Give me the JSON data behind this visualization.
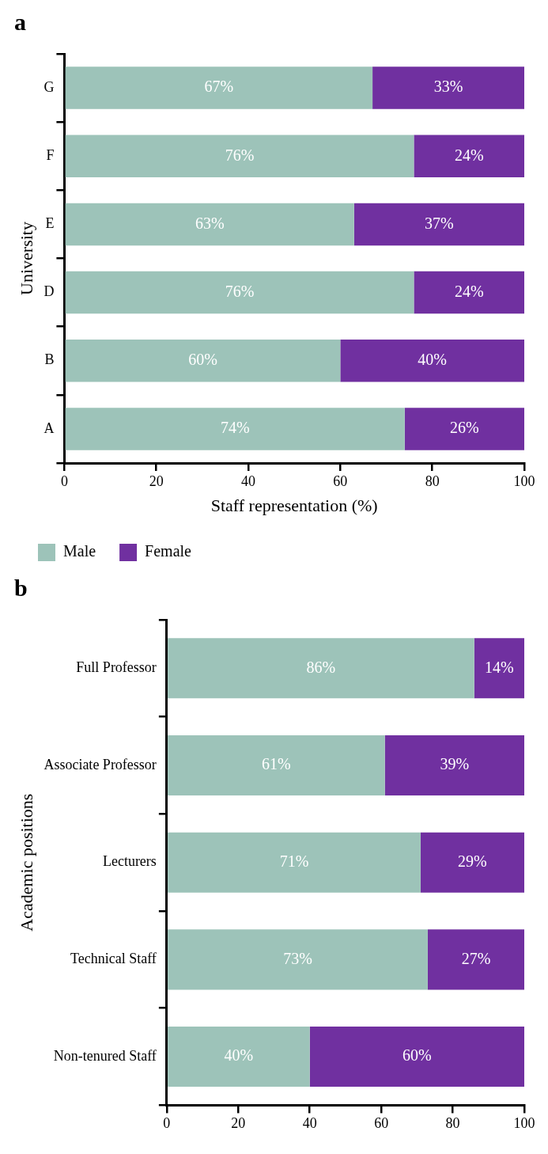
{
  "chart_data": [
    {
      "type": "bar",
      "title": "a",
      "orientation": "horizontal",
      "stacked": true,
      "xlabel": "Staff representation (%)",
      "ylabel": "University",
      "categories": [
        "G",
        "F",
        "E",
        "D",
        "B",
        "A"
      ],
      "xlim": [
        0,
        100
      ],
      "xticks": [
        0,
        20,
        40,
        60,
        80,
        100
      ],
      "grid": false,
      "legend": "bottom",
      "series": [
        {
          "name": "Male",
          "color": "#9dc3b9",
          "values": [
            67,
            76,
            63,
            76,
            60,
            74
          ],
          "value_labels": [
            "67%",
            "76%",
            "63%",
            "76%",
            "60%",
            "74%"
          ]
        },
        {
          "name": "Female",
          "color": "#7030a0",
          "values": [
            33,
            24,
            37,
            24,
            40,
            26
          ],
          "value_labels": [
            "33%",
            "24%",
            "37%",
            "24%",
            "40%",
            "26%"
          ]
        }
      ]
    },
    {
      "type": "bar",
      "title": "b",
      "orientation": "horizontal",
      "stacked": true,
      "ylabel": "Academic positions",
      "categories": [
        "Full Professor",
        "Associate Professor",
        "Lecturers",
        "Technical Staff",
        "Non-tenured Staff"
      ],
      "xlim": [
        0,
        100
      ],
      "xticks": [
        0,
        20,
        40,
        60,
        80,
        100
      ],
      "grid": false,
      "legend": false,
      "series": [
        {
          "color": "#9dc3b9",
          "values": [
            86,
            61,
            71,
            73,
            40
          ],
          "value_labels": [
            "86%",
            "61%",
            "71%",
            "73%",
            "40%"
          ]
        },
        {
          "color": "#7030a0",
          "values": [
            14,
            39,
            29,
            27,
            60
          ],
          "value_labels": [
            "14%",
            "39%",
            "29%",
            "27%",
            "60%"
          ]
        }
      ]
    }
  ]
}
